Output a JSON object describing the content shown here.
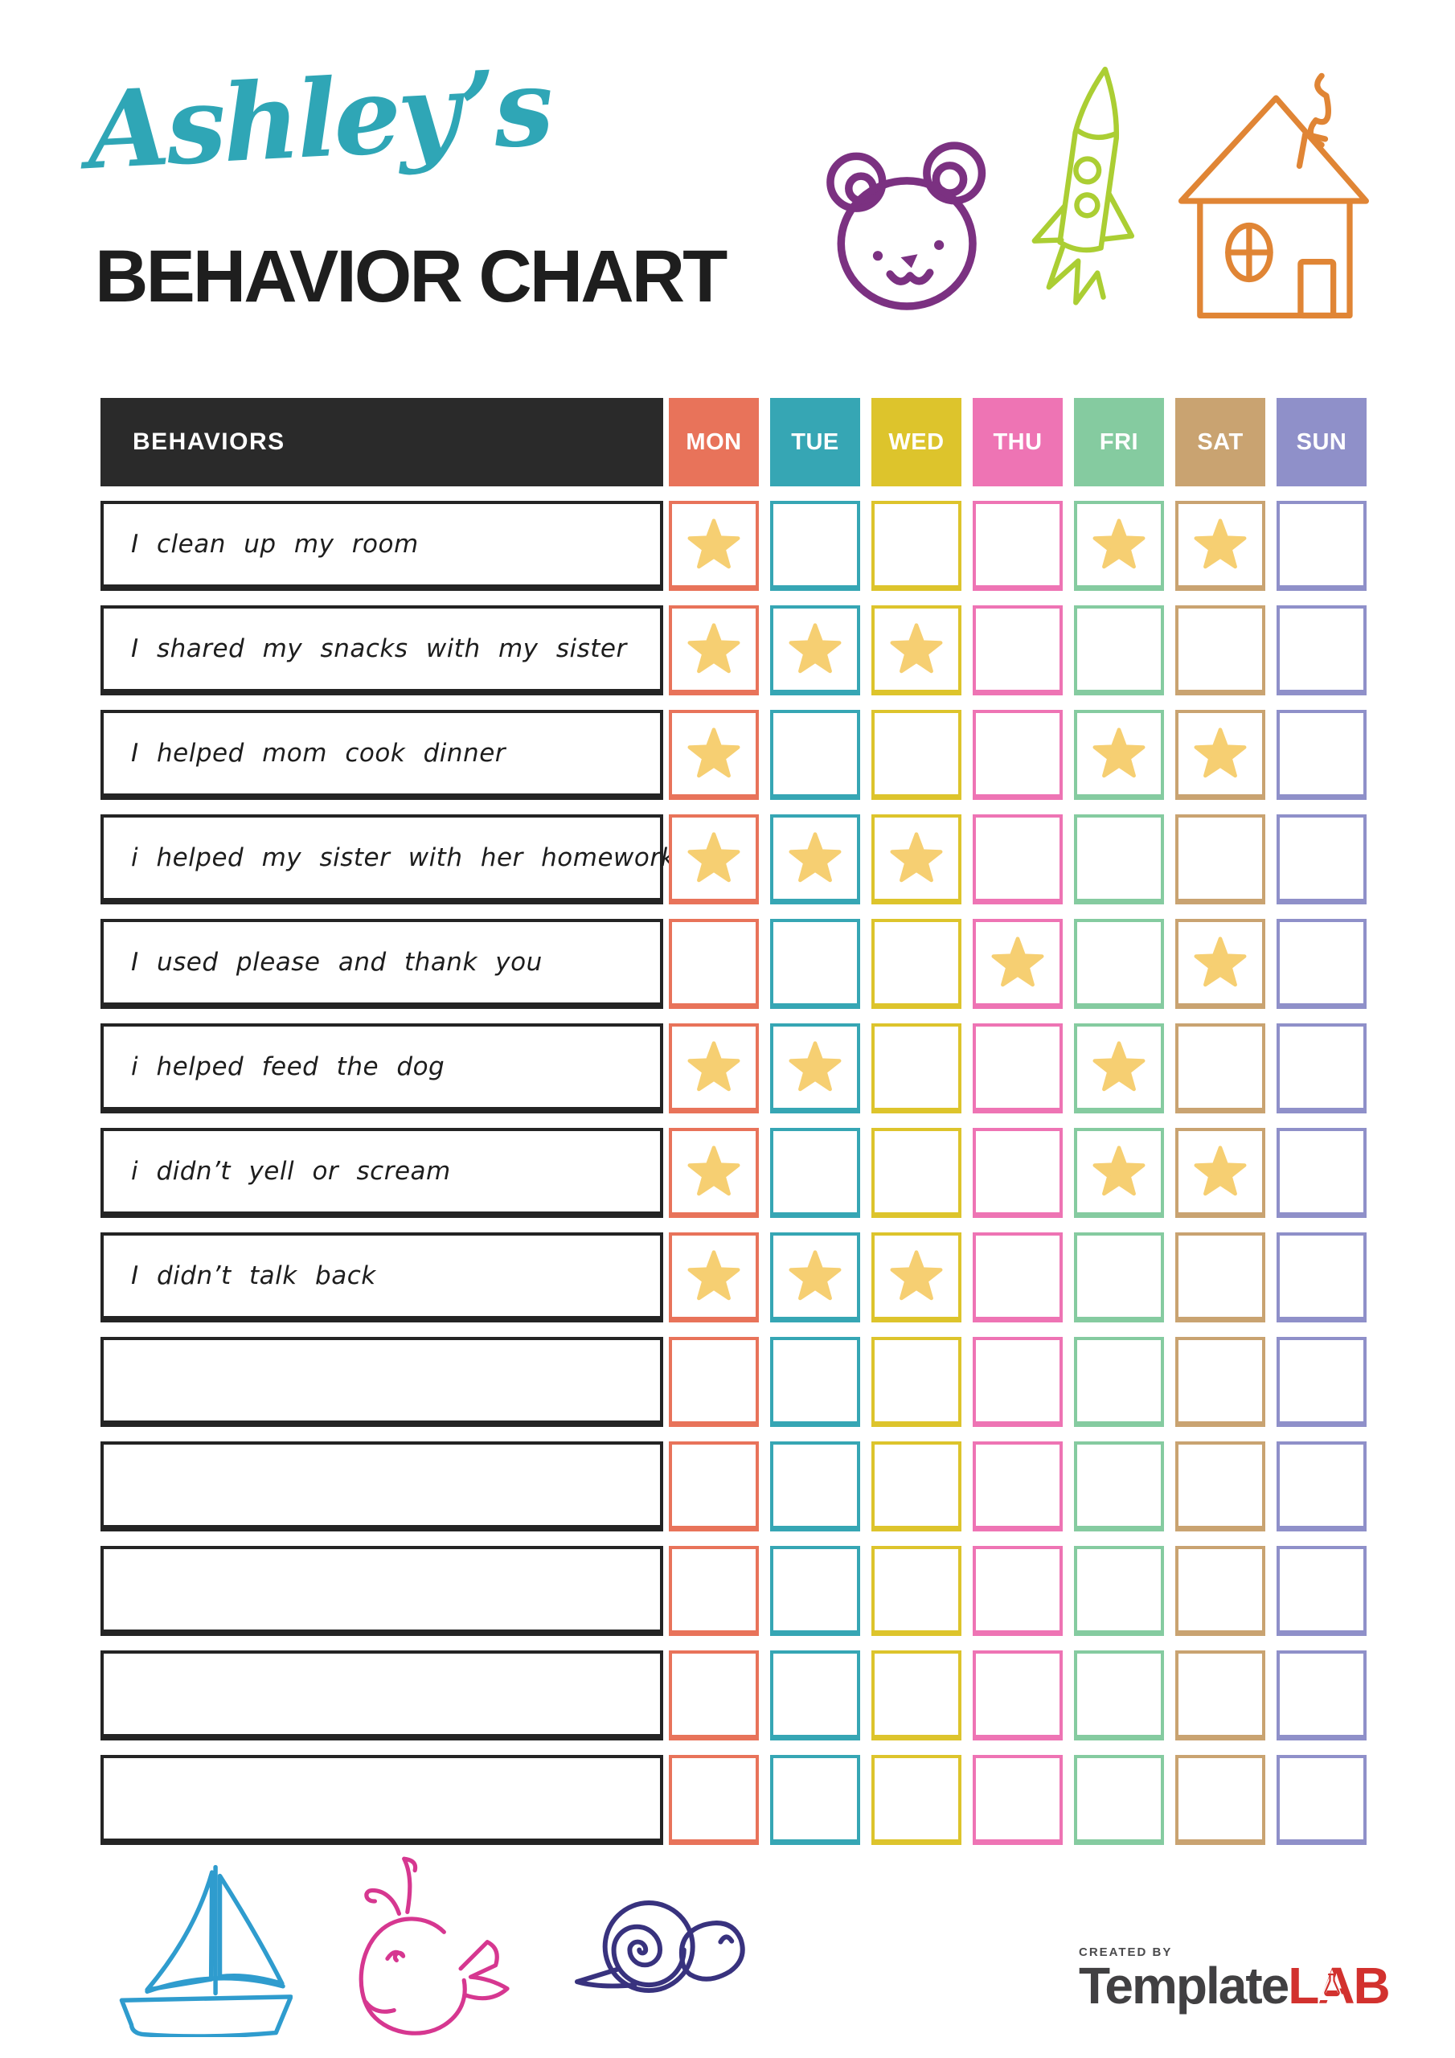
{
  "title_block": {
    "owner_name": "Ashley’s",
    "page_title": "BEHAVIOR CHART"
  },
  "title_colors": {
    "script": "#2FA6B6",
    "main": "#1E1E1E"
  },
  "chart": {
    "behaviors_header": "BEHAVIORS",
    "header_bg": "#2A2A2A",
    "star_color": "#F6CF72",
    "days": [
      {
        "label": "MON",
        "color": "#E8735A"
      },
      {
        "label": "TUE",
        "color": "#36A6B4"
      },
      {
        "label": "WED",
        "color": "#DDC42C"
      },
      {
        "label": "THU",
        "color": "#EE74B4"
      },
      {
        "label": "FRI",
        "color": "#85CBA0"
      },
      {
        "label": "SAT",
        "color": "#C9A371"
      },
      {
        "label": "SUN",
        "color": "#8F90C9"
      }
    ],
    "rows": [
      {
        "behavior": "I clean up my room",
        "stars": [
          "MON",
          "FRI",
          "SAT"
        ]
      },
      {
        "behavior": "I shared my snacks with my sister",
        "stars": [
          "MON",
          "TUE",
          "WED"
        ]
      },
      {
        "behavior": "I helped mom cook dinner",
        "stars": [
          "MON",
          "FRI",
          "SAT"
        ]
      },
      {
        "behavior": "i helped my sister with her homework",
        "stars": [
          "MON",
          "TUE",
          "WED"
        ]
      },
      {
        "behavior": "I used please and thank you",
        "stars": [
          "THU",
          "SAT"
        ]
      },
      {
        "behavior": "i helped feed the dog",
        "stars": [
          "MON",
          "TUE",
          "FRI"
        ]
      },
      {
        "behavior": "i didn’t yell or scream",
        "stars": [
          "MON",
          "FRI",
          "SAT"
        ]
      },
      {
        "behavior": "I didn’t talk back",
        "stars": [
          "MON",
          "TUE",
          "WED"
        ]
      },
      {
        "behavior": "",
        "stars": []
      },
      {
        "behavior": "",
        "stars": []
      },
      {
        "behavior": "",
        "stars": []
      },
      {
        "behavior": "",
        "stars": []
      },
      {
        "behavior": "",
        "stars": []
      }
    ]
  },
  "decorations": {
    "bear_color": "#7B3181",
    "rocket_color": "#ABCE33",
    "house_color": "#E08535",
    "boat_color": "#2F9CCE",
    "whale_color": "#D63790",
    "snail_color": "#38327E"
  },
  "footer": {
    "created_by": "CREATED BY",
    "brand_first": "Template",
    "brand_last": "LAB",
    "brand_first_color": "#414042",
    "brand_last_color": "#D2312E"
  }
}
